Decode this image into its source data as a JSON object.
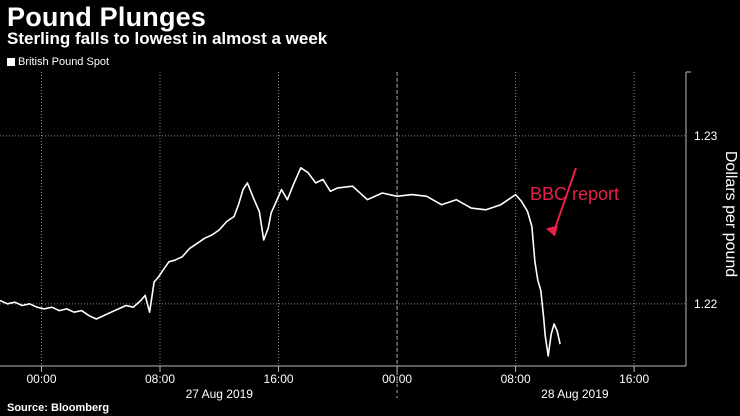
{
  "header": {
    "title": "Pound Plunges",
    "subtitle": "Sterling falls to lowest in almost a week",
    "source": "Source: Bloomberg"
  },
  "chart_data": {
    "type": "line",
    "title": "Pound Plunges",
    "subtitle": "Sterling falls to lowest in almost a week",
    "ylabel": "Dollars per pound",
    "xlabel": "",
    "ylim": [
      1.2163,
      1.2338
    ],
    "xlim_hours": [
      -2.8,
      43.5
    ],
    "yticks": [
      1.22,
      1.23
    ],
    "ytick_labels": [
      "1.22",
      "1.23"
    ],
    "xticks": [
      {
        "hour": 0,
        "label": "00:00"
      },
      {
        "hour": 8,
        "label": "08:00"
      },
      {
        "hour": 16,
        "label": "16:00"
      },
      {
        "hour": 24,
        "label": "00:00"
      },
      {
        "hour": 32,
        "label": "08:00"
      },
      {
        "hour": 40,
        "label": "16:00"
      }
    ],
    "date_labels": [
      {
        "hour": 12,
        "label": "27 Aug 2019"
      },
      {
        "hour": 36,
        "label": "28 Aug 2019"
      }
    ],
    "grid": true,
    "legend": "top-left",
    "series": [
      {
        "name": "British Pound Spot",
        "color": "#ffffff",
        "x": [
          -2.8,
          -2.3,
          -1.8,
          -1.3,
          -0.8,
          -0.3,
          0.2,
          0.7,
          1.2,
          1.7,
          2.2,
          2.7,
          3.2,
          3.7,
          4.2,
          4.7,
          5.2,
          5.7,
          6.2,
          6.7,
          7.0,
          7.3,
          7.6,
          7.9,
          8.2,
          8.6,
          9.0,
          9.5,
          10.0,
          10.5,
          11.0,
          11.5,
          12.0,
          12.5,
          13.0,
          13.3,
          13.6,
          13.9,
          14.3,
          14.7,
          15.0,
          15.3,
          15.5,
          15.8,
          16.2,
          16.6,
          17.0,
          17.5,
          18.0,
          18.5,
          19.0,
          19.5,
          20.0,
          21.0,
          22.0,
          23.0,
          24.0,
          25.0,
          26.0,
          27.0,
          28.0,
          29.0,
          30.0,
          31.0,
          31.5,
          32.0,
          32.4,
          32.8,
          33.1,
          33.3,
          33.5,
          33.7,
          33.9,
          34.0,
          34.2,
          34.4,
          34.6,
          34.8,
          35.0
        ],
        "y": [
          1.2202,
          1.22,
          1.2201,
          1.2199,
          1.22,
          1.2198,
          1.2197,
          1.2198,
          1.2196,
          1.2197,
          1.2195,
          1.2196,
          1.2193,
          1.2191,
          1.2193,
          1.2195,
          1.2197,
          1.2199,
          1.2198,
          1.2202,
          1.2205,
          1.2195,
          1.2213,
          1.2216,
          1.222,
          1.2225,
          1.2226,
          1.2228,
          1.2233,
          1.2236,
          1.2239,
          1.2241,
          1.2244,
          1.2249,
          1.2252,
          1.2259,
          1.2268,
          1.2272,
          1.2263,
          1.2255,
          1.2238,
          1.2245,
          1.2254,
          1.226,
          1.2268,
          1.2262,
          1.2271,
          1.2281,
          1.2278,
          1.2272,
          1.2274,
          1.2267,
          1.2269,
          1.227,
          1.2262,
          1.2266,
          1.2264,
          1.2265,
          1.2264,
          1.2259,
          1.2262,
          1.2257,
          1.2256,
          1.2259,
          1.2262,
          1.2265,
          1.2261,
          1.2255,
          1.2246,
          1.2225,
          1.2214,
          1.2208,
          1.2191,
          1.2181,
          1.2169,
          1.2182,
          1.2188,
          1.2184,
          1.2176
        ]
      }
    ],
    "annotations": [
      {
        "text": "BBC report",
        "color": "#e8204a"
      }
    ]
  }
}
